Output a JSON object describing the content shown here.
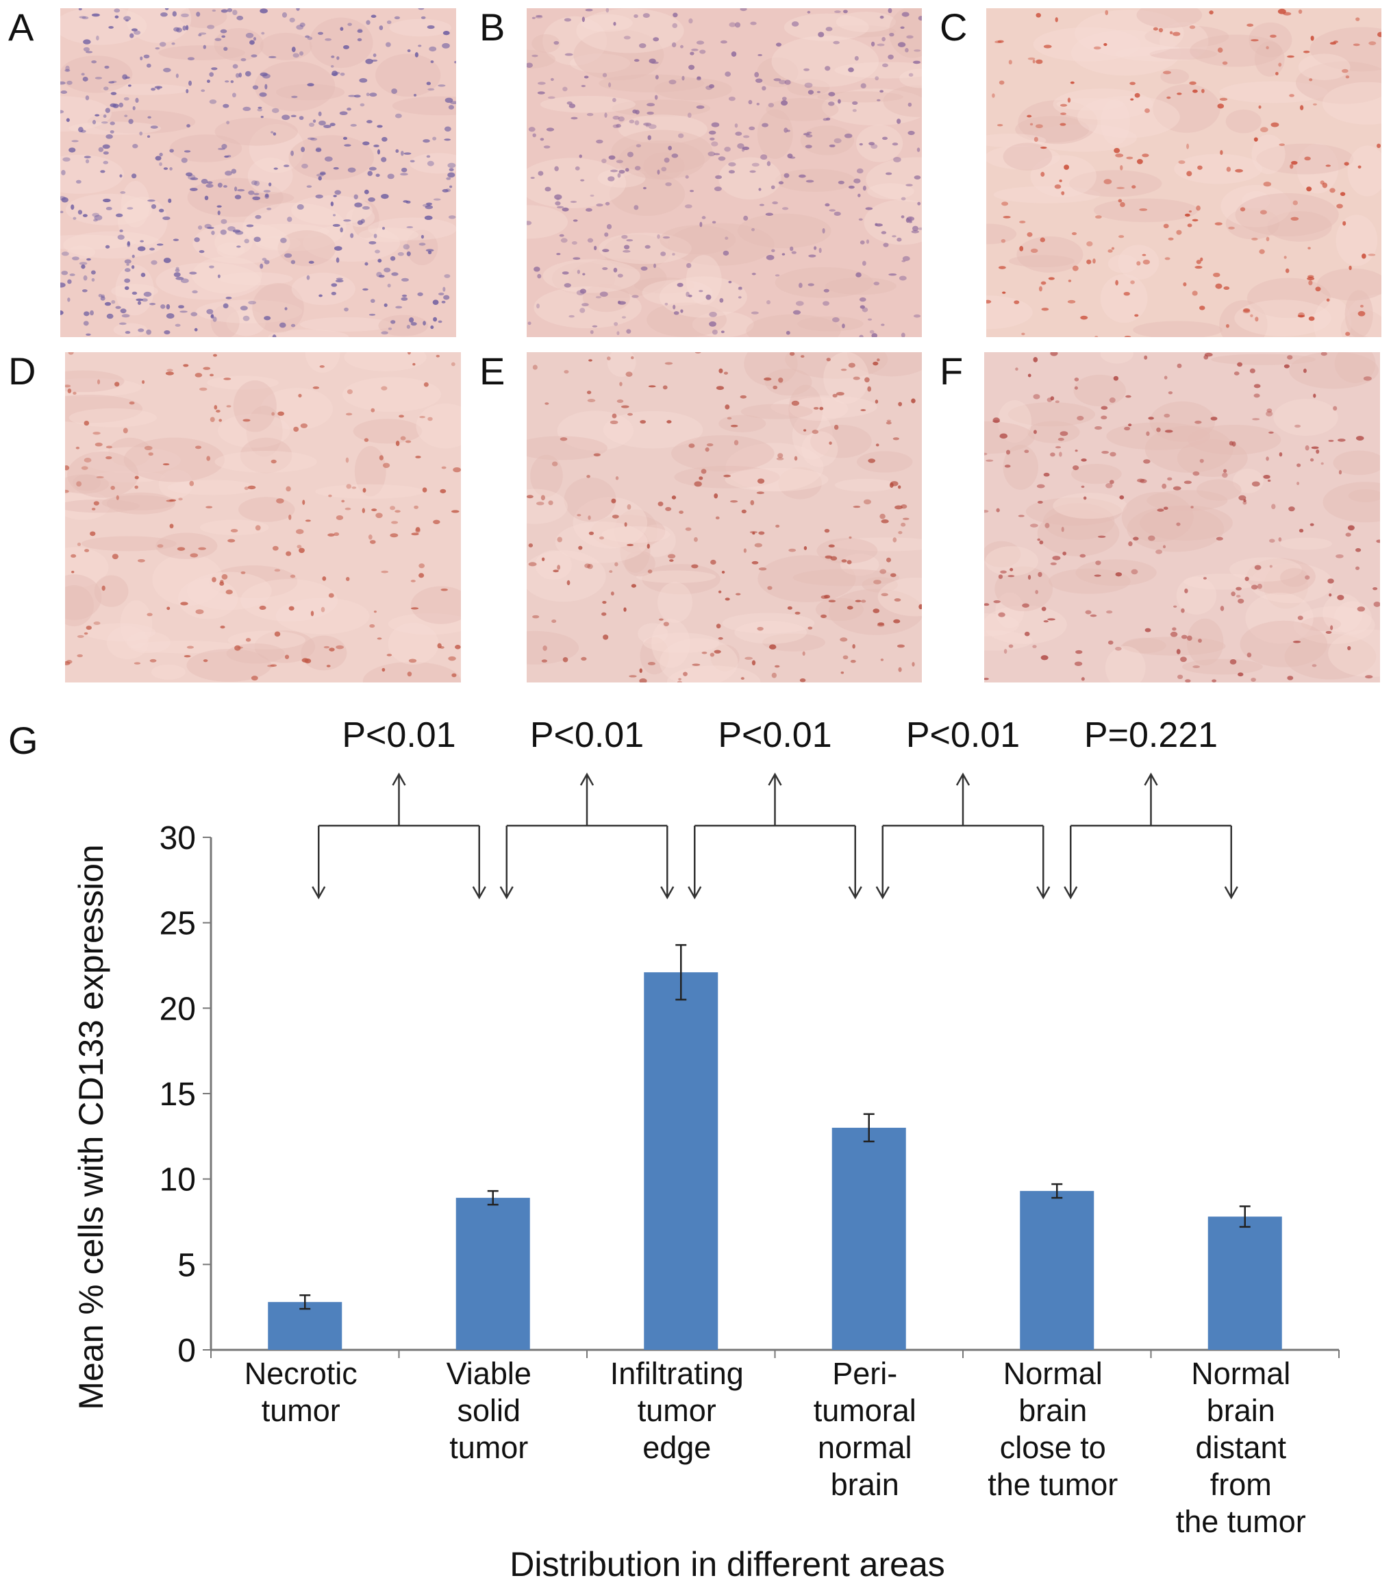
{
  "panels": [
    {
      "label": "A",
      "tone": "#efcdc6",
      "dots": "#6a5aa0",
      "density": 520
    },
    {
      "label": "B",
      "tone": "#ecc8c2",
      "dots": "#8e6a9c",
      "density": 380
    },
    {
      "label": "C",
      "tone": "#f0d2c8",
      "dots": "#c8442e",
      "density": 200
    },
    {
      "label": "D",
      "tone": "#f0d2cb",
      "dots": "#c25a48",
      "density": 200
    },
    {
      "label": "E",
      "tone": "#eccec8",
      "dots": "#b44a3c",
      "density": 220
    },
    {
      "label": "F",
      "tone": "#eccec9",
      "dots": "#b04844",
      "density": 220
    }
  ],
  "chart_data": {
    "type": "bar",
    "panel_label": "G",
    "title": "",
    "xlabel": "Distribution in different areas",
    "ylabel": "Mean % cells with CD133 expression",
    "ylim": [
      0,
      30
    ],
    "yticks": [
      0,
      5,
      10,
      15,
      20,
      25,
      30
    ],
    "categories": [
      [
        "Necrotic",
        "tumor"
      ],
      [
        "Viable",
        "solid",
        "tumor"
      ],
      [
        "Infiltrating",
        "tumor",
        "edge"
      ],
      [
        "Peri-",
        "tumoral",
        "normal",
        "brain"
      ],
      [
        "Normal",
        "brain",
        "close to",
        "the tumor"
      ],
      [
        "Normal",
        "brain",
        "distant",
        "from",
        "the tumor"
      ]
    ],
    "values": [
      2.8,
      8.9,
      22.1,
      13.0,
      9.3,
      7.8
    ],
    "errors": [
      0.4,
      0.4,
      1.6,
      0.8,
      0.4,
      0.6
    ],
    "bar_color": "#4f81bd",
    "comparisons": [
      {
        "from": 0,
        "to": 1,
        "label": "P<0.01"
      },
      {
        "from": 1,
        "to": 2,
        "label": "P<0.01"
      },
      {
        "from": 2,
        "to": 3,
        "label": "P<0.01"
      },
      {
        "from": 3,
        "to": 4,
        "label": "P<0.01"
      },
      {
        "from": 4,
        "to": 5,
        "label": "P=0.221"
      }
    ],
    "grid": false,
    "legend": "none"
  }
}
